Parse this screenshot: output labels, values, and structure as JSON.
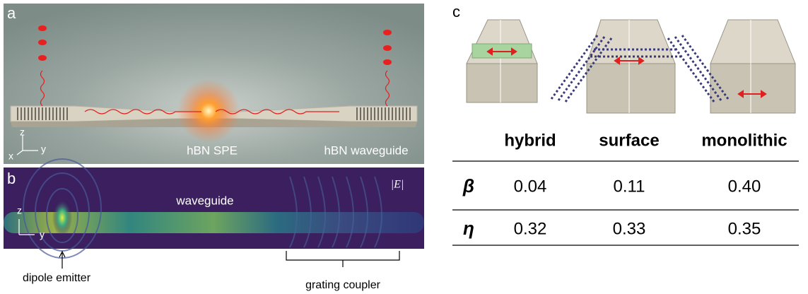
{
  "panel_a": {
    "label": "a",
    "axis_z": "z",
    "axis_x": "x",
    "axis_y": "y",
    "emitter_label": "hBN SPE",
    "waveguide_label": "hBN waveguide"
  },
  "panel_b": {
    "label": "b",
    "field_label": "|E|",
    "axis_z": "z",
    "axis_y": "y",
    "region_label": "waveguide",
    "emitter_annotation": "dipole emitter",
    "coupler_annotation": "grating coupler"
  },
  "panel_c": {
    "label": "c",
    "table": {
      "columns": [
        "hybrid",
        "surface",
        "monolithic"
      ],
      "rows": [
        {
          "symbol": "β",
          "values": [
            "0.04",
            "0.11",
            "0.40"
          ]
        },
        {
          "symbol": "η",
          "values": [
            "0.32",
            "0.33",
            "0.35"
          ]
        }
      ]
    }
  }
}
